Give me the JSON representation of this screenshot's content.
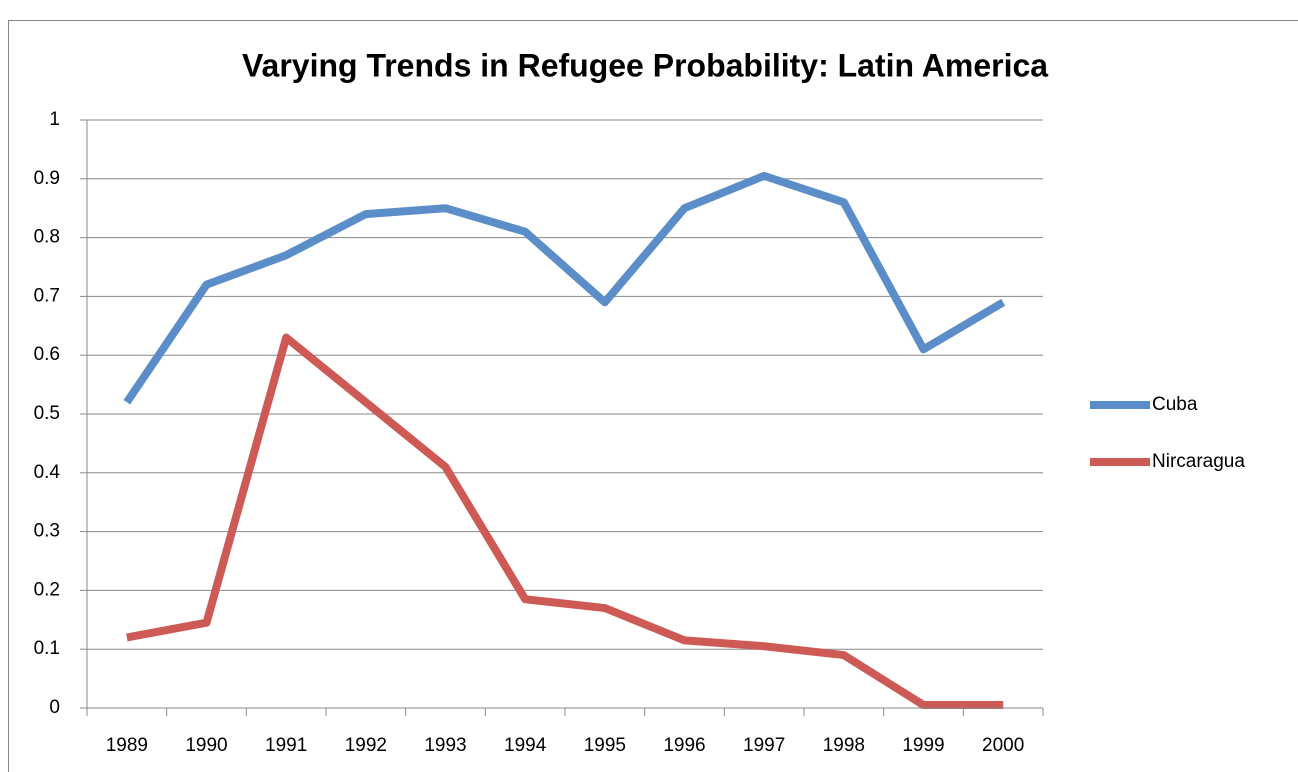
{
  "chart_data": {
    "type": "line",
    "title": "Varying Trends in Refugee Probability: Latin America",
    "categories": [
      "1989",
      "1990",
      "1991",
      "1992",
      "1993",
      "1994",
      "1995",
      "1996",
      "1997",
      "1998",
      "1999",
      "2000"
    ],
    "series": [
      {
        "name": "Cuba",
        "color": "#5b8ec9",
        "values": [
          0.52,
          0.72,
          0.77,
          0.84,
          0.85,
          0.81,
          0.69,
          0.85,
          0.905,
          0.86,
          0.61,
          0.69
        ]
      },
      {
        "name": "Nircaragua",
        "color": "#cd5a55",
        "values": [
          0.12,
          0.145,
          0.63,
          0.52,
          0.41,
          0.185,
          0.17,
          0.115,
          0.105,
          0.09,
          0.005,
          0.005
        ]
      }
    ],
    "ylim": [
      0,
      1
    ],
    "yticks": [
      0,
      0.1,
      0.2,
      0.3,
      0.4,
      0.5,
      0.6,
      0.7,
      0.8,
      0.9,
      1
    ],
    "grid": true,
    "legend": "right"
  }
}
